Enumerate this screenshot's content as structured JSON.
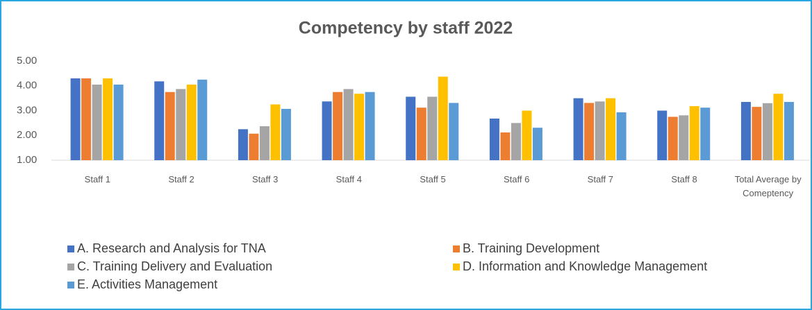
{
  "chart_data": {
    "type": "bar",
    "title": "Competency by staff 2022",
    "categories": [
      "Staff 1",
      "Staff 2",
      "Staff 3",
      "Staff 4",
      "Staff 5",
      "Staff 6",
      "Staff 7",
      "Staff 8",
      "Total Average by Comeptency"
    ],
    "series": [
      {
        "name": "A. Research and Analysis for TNA",
        "color": "#4472c4",
        "values": [
          4.3,
          4.18,
          2.25,
          3.37,
          3.56,
          2.68,
          3.5,
          3.0,
          3.35
        ]
      },
      {
        "name": "B. Training Development",
        "color": "#ed7d31",
        "values": [
          4.3,
          3.75,
          2.07,
          3.75,
          3.12,
          2.12,
          3.31,
          2.75,
          3.15
        ]
      },
      {
        "name": "C. Training Delivery and Evaluation",
        "color": "#a5a5a5",
        "values": [
          4.05,
          3.87,
          2.37,
          3.87,
          3.56,
          2.5,
          3.37,
          2.81,
          3.3
        ]
      },
      {
        "name": "D. Information and Knowledge Management",
        "color": "#ffc000",
        "values": [
          4.3,
          4.05,
          3.25,
          3.68,
          4.37,
          3.0,
          3.5,
          3.18,
          3.68
        ]
      },
      {
        "name": "E. Activities Management",
        "color": "#5b9bd5",
        "values": [
          4.05,
          4.25,
          3.07,
          3.75,
          3.31,
          2.31,
          2.93,
          3.12,
          3.35
        ]
      }
    ],
    "ylim": [
      1,
      5
    ],
    "yticks": [
      {
        "value": 1,
        "label": "1.00"
      },
      {
        "value": 2,
        "label": "2.00"
      },
      {
        "value": 3,
        "label": "3.00"
      },
      {
        "value": 4,
        "label": "4.00"
      },
      {
        "value": 5,
        "label": "5.00"
      }
    ],
    "grid": false,
    "legend": "bottom"
  }
}
